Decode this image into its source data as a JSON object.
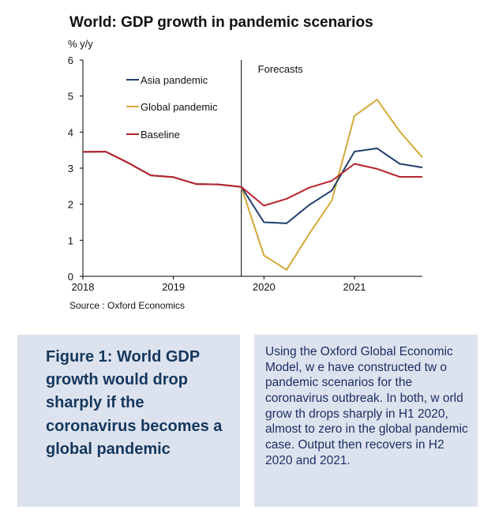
{
  "chart_data": {
    "type": "line",
    "title": "World: GDP growth in pandemic scenarios",
    "ylabel": "% y/y",
    "ylim": [
      0,
      6
    ],
    "yticks": [
      0,
      1,
      2,
      3,
      4,
      5,
      6
    ],
    "xlim": [
      2018,
      2021.75
    ],
    "xticks": [
      2018,
      2019,
      2020,
      2021
    ],
    "xtick_labels": [
      "2018",
      "2019",
      "2020",
      "2021"
    ],
    "forecast_start": 2019.75,
    "forecast_label": "Forecasts",
    "grid": false,
    "legend_position": "top-left",
    "source": "Source : Oxford Economics",
    "x": [
      2018,
      2018.25,
      2018.5,
      2018.75,
      2019,
      2019.25,
      2019.5,
      2019.75,
      2020,
      2020.25,
      2020.5,
      2020.75,
      2021,
      2021.25,
      2021.5,
      2021.75
    ],
    "series": [
      {
        "name": "Asia pandemic",
        "color": "#1f3f6e",
        "values": [
          3.45,
          3.46,
          3.15,
          2.8,
          2.75,
          2.56,
          2.55,
          2.48,
          1.5,
          1.47,
          1.98,
          2.38,
          3.46,
          3.55,
          3.12,
          3.02
        ]
      },
      {
        "name": "Global pandemic",
        "color": "#d4a935",
        "values": [
          3.45,
          3.46,
          3.15,
          2.8,
          2.75,
          2.56,
          2.55,
          2.48,
          0.58,
          0.18,
          1.18,
          2.1,
          4.45,
          4.9,
          4.02,
          3.3
        ]
      },
      {
        "name": "Baseline",
        "color": "#b8242e",
        "values": [
          3.45,
          3.46,
          3.15,
          2.8,
          2.75,
          2.56,
          2.55,
          2.48,
          1.96,
          2.15,
          2.46,
          2.65,
          3.12,
          2.98,
          2.76,
          2.76
        ]
      }
    ]
  },
  "figure": {
    "caption": "Figure 1: World GDP growth would drop sharply if the coronavirus becomes a global pandemic",
    "text": "Using the Oxford Global Economic Model, w e have constructed tw o pandemic scenarios for the coronavirus outbreak. In both, w orld grow th drops sharply in H1 2020, almost to zero in the global pandemic case. Output then recovers in H2 2020 and 2021."
  }
}
